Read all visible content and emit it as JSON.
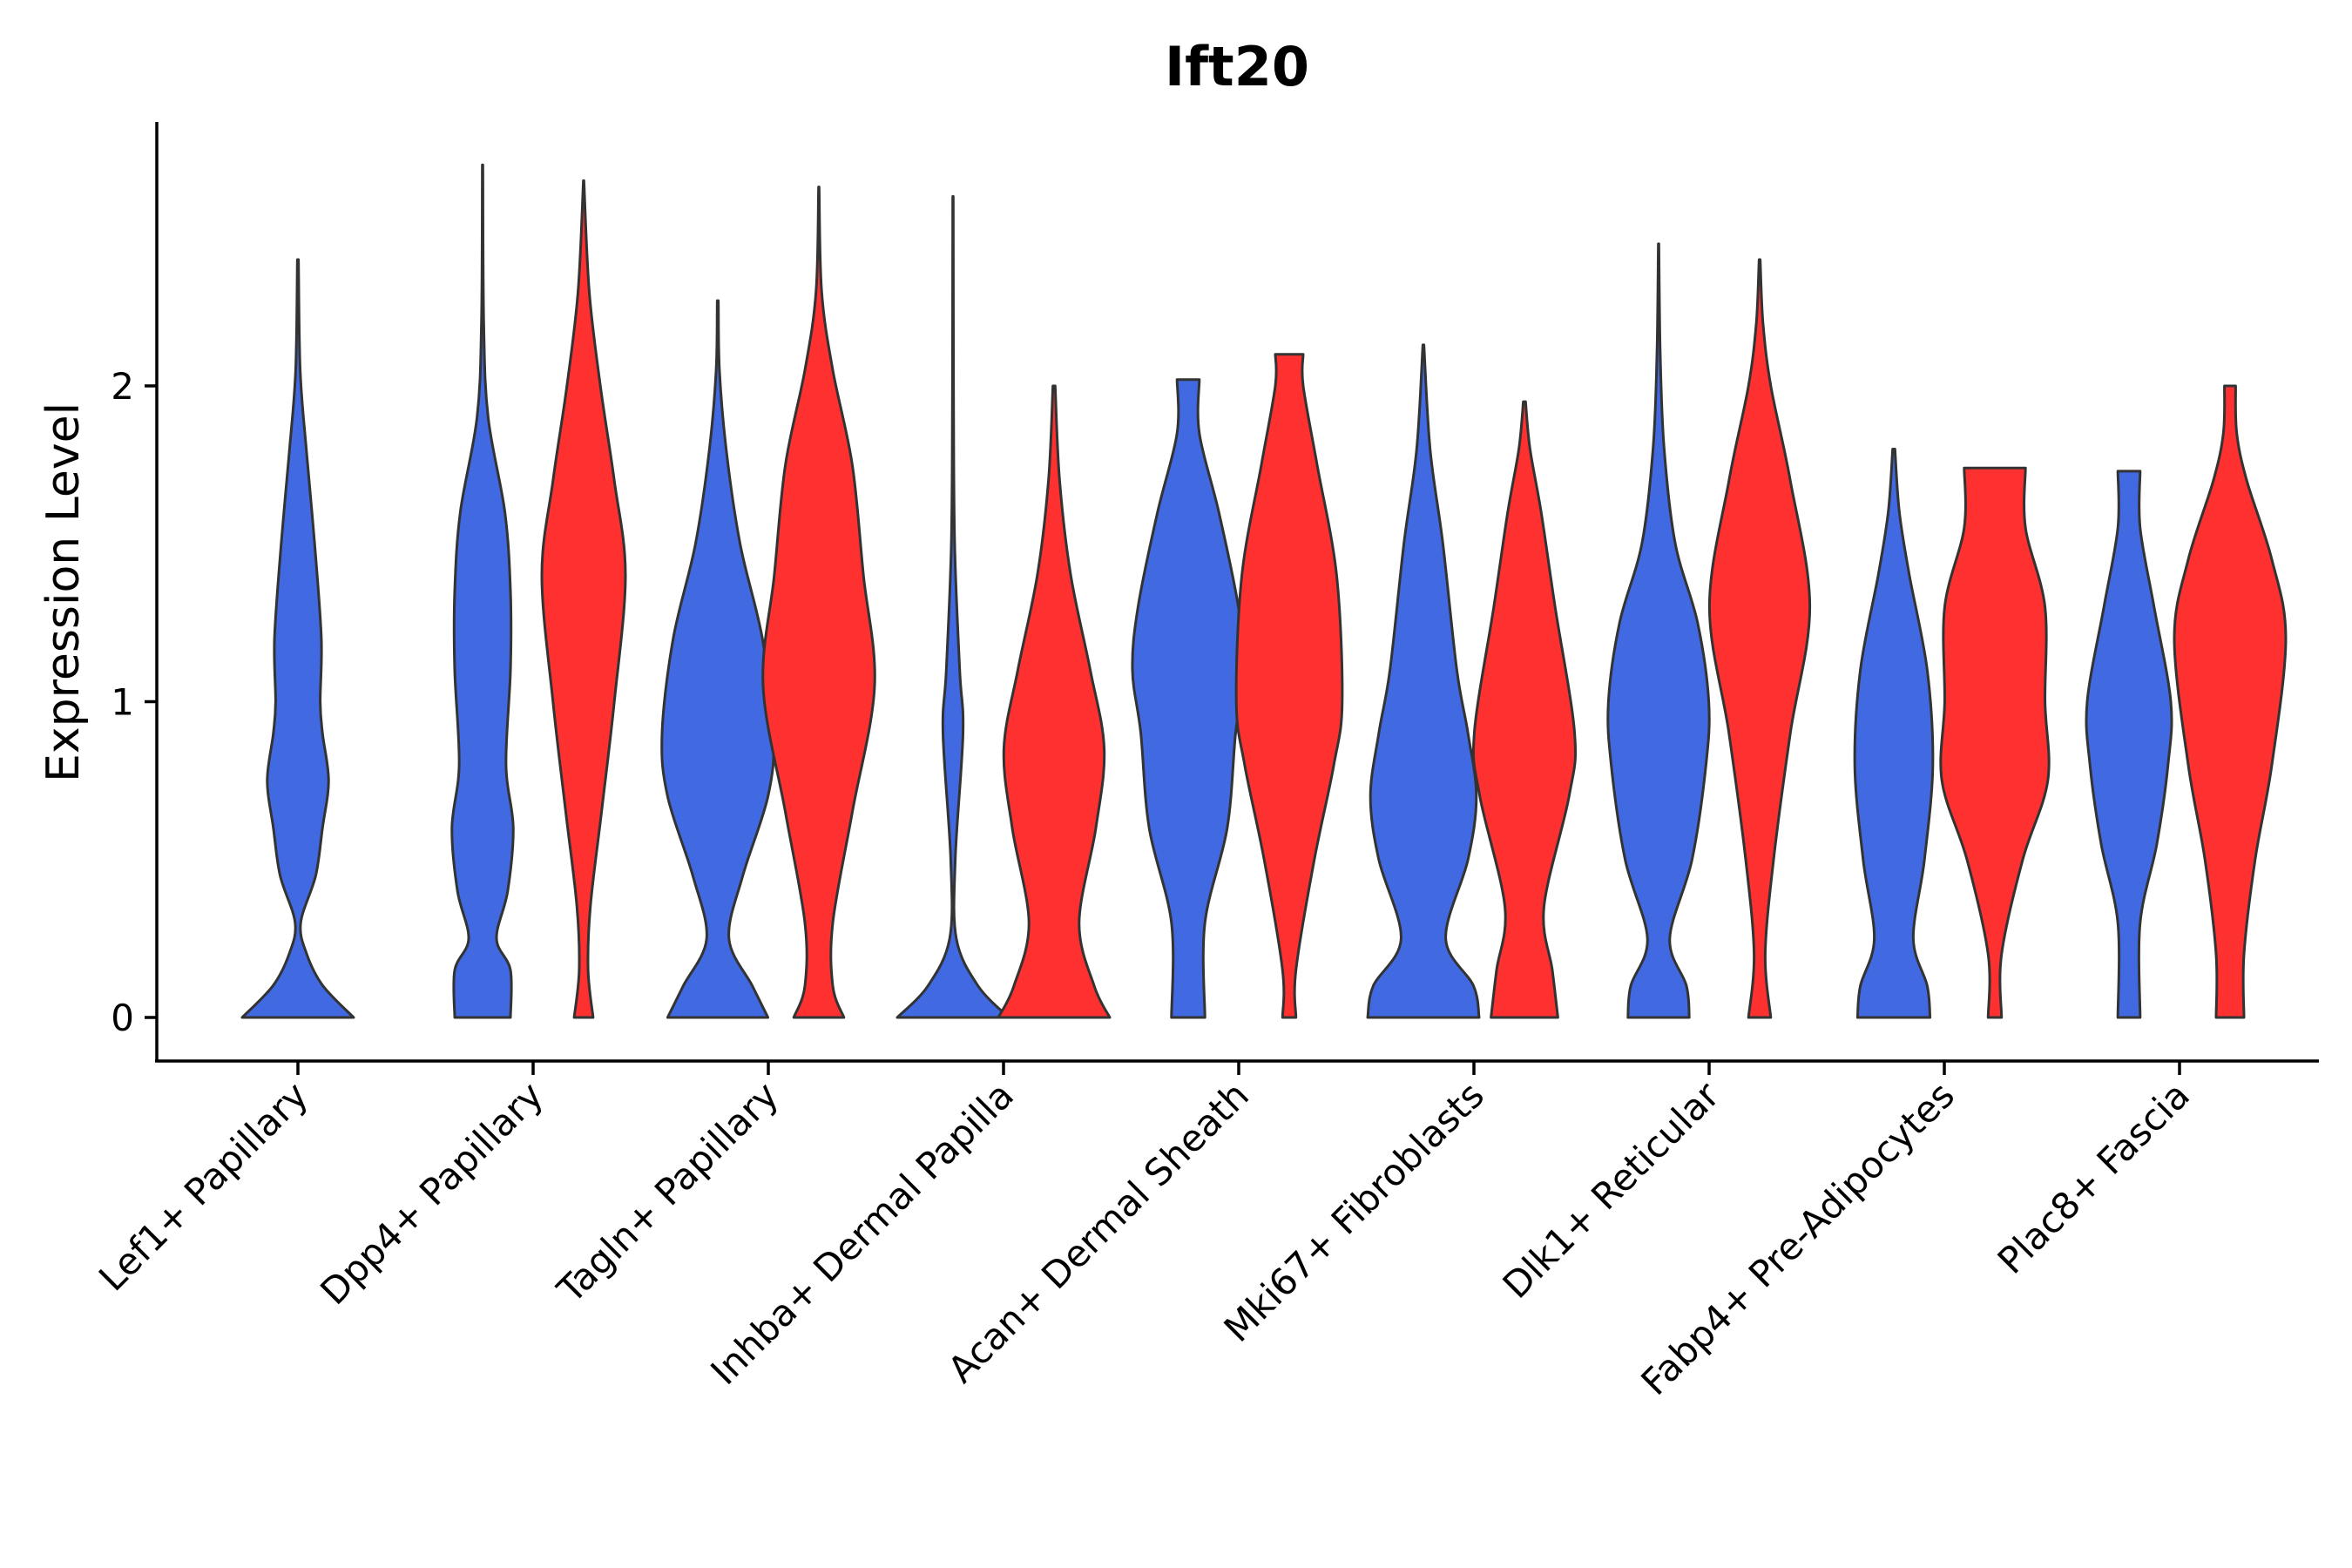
{
  "chart_data": {
    "type": "violin",
    "title": "Ift20",
    "xlabel": "",
    "ylabel": "Expression Level",
    "ylim": [
      -0.14,
      2.85
    ],
    "yticks": [
      0,
      1,
      2
    ],
    "grid": false,
    "legend": "none",
    "colors": {
      "group1": "#4169E1",
      "group2": "#FF3030",
      "outline": "#333333"
    },
    "categories": [
      "Lef1+ Papillary",
      "Dpp4+ Papillary",
      "Tagln+ Papillary",
      "Inhba+ Dermal Papilla",
      "Acan+ Dermal Sheath",
      "Mki67+ Fibroblasts",
      "Dlk1+ Reticular",
      "Fabp4+ Pre-Adipocytes",
      "Plac8+ Fascia"
    ],
    "series": [
      {
        "name": "group1",
        "color": "#4169E1",
        "violins": [
          {
            "category": "Lef1+ Papillary",
            "max": 2.4,
            "profile": [
              [
                0,
                1.0
              ],
              [
                0.1,
                0.45
              ],
              [
                0.2,
                0.16
              ],
              [
                0.3,
                0.05
              ],
              [
                0.45,
                0.32
              ],
              [
                0.6,
                0.44
              ],
              [
                0.75,
                0.55
              ],
              [
                0.9,
                0.44
              ],
              [
                1.0,
                0.4
              ],
              [
                1.2,
                0.42
              ],
              [
                1.5,
                0.3
              ],
              [
                1.8,
                0.15
              ],
              [
                2.05,
                0.04
              ],
              [
                2.4,
                0.01
              ]
            ]
          },
          {
            "category": "Dpp4+ Papillary",
            "max": 2.7,
            "profile": [
              [
                0,
                0.5
              ],
              [
                0.15,
                0.5
              ],
              [
                0.25,
                0.25
              ],
              [
                0.4,
                0.45
              ],
              [
                0.6,
                0.55
              ],
              [
                0.8,
                0.42
              ],
              [
                1.1,
                0.5
              ],
              [
                1.35,
                0.5
              ],
              [
                1.6,
                0.4
              ],
              [
                1.9,
                0.1
              ],
              [
                2.2,
                0.02
              ],
              [
                2.7,
                0.005
              ]
            ]
          },
          {
            "category": "Tagln+ Papillary",
            "max": 2.27,
            "profile": [
              [
                0,
                0.9
              ],
              [
                0.1,
                0.62
              ],
              [
                0.25,
                0.2
              ],
              [
                0.45,
                0.45
              ],
              [
                0.7,
                0.9
              ],
              [
                0.9,
                1.0
              ],
              [
                1.2,
                0.8
              ],
              [
                1.5,
                0.4
              ],
              [
                1.8,
                0.15
              ],
              [
                2.05,
                0.03
              ],
              [
                2.27,
                0.01
              ]
            ]
          },
          {
            "category": "Inhba+ Dermal Papilla",
            "max": 2.6,
            "profile": [
              [
                0,
                1.0
              ],
              [
                0.1,
                0.45
              ],
              [
                0.25,
                0.06
              ],
              [
                0.5,
                0.04
              ],
              [
                0.9,
                0.18
              ],
              [
                1.1,
                0.12
              ],
              [
                1.5,
                0.03
              ],
              [
                2.0,
                0.01
              ],
              [
                2.6,
                0.005
              ]
            ]
          },
          {
            "category": "Acan+ Dermal Sheath",
            "max": 2.02,
            "profile": [
              [
                0,
                0.3
              ],
              [
                0.3,
                0.3
              ],
              [
                0.6,
                0.7
              ],
              [
                0.9,
                0.85
              ],
              [
                1.1,
                1.0
              ],
              [
                1.3,
                0.9
              ],
              [
                1.6,
                0.55
              ],
              [
                1.85,
                0.2
              ],
              [
                2.02,
                0.2
              ]
            ]
          },
          {
            "category": "Mki67+ Fibroblasts",
            "max": 2.13,
            "profile": [
              [
                0,
                1.0
              ],
              [
                0.1,
                0.9
              ],
              [
                0.25,
                0.4
              ],
              [
                0.5,
                0.8
              ],
              [
                0.7,
                0.95
              ],
              [
                0.9,
                0.8
              ],
              [
                1.1,
                0.6
              ],
              [
                1.5,
                0.35
              ],
              [
                1.8,
                0.12
              ],
              [
                2.13,
                0.01
              ]
            ]
          },
          {
            "category": "Dlk1+ Reticular",
            "max": 2.45,
            "profile": [
              [
                0,
                0.55
              ],
              [
                0.1,
                0.5
              ],
              [
                0.25,
                0.2
              ],
              [
                0.5,
                0.6
              ],
              [
                0.8,
                0.85
              ],
              [
                1.0,
                0.9
              ],
              [
                1.25,
                0.7
              ],
              [
                1.5,
                0.3
              ],
              [
                1.8,
                0.1
              ],
              [
                2.1,
                0.03
              ],
              [
                2.45,
                0.005
              ]
            ]
          },
          {
            "category": "Fabp4+ Pre-Adipocytes",
            "max": 1.8,
            "profile": [
              [
                0,
                0.65
              ],
              [
                0.1,
                0.6
              ],
              [
                0.25,
                0.35
              ],
              [
                0.5,
                0.55
              ],
              [
                0.8,
                0.7
              ],
              [
                1.1,
                0.6
              ],
              [
                1.4,
                0.28
              ],
              [
                1.6,
                0.1
              ],
              [
                1.8,
                0.02
              ]
            ]
          },
          {
            "category": "Plac8+ Fascia",
            "max": 1.73,
            "profile": [
              [
                0,
                0.2
              ],
              [
                0.3,
                0.2
              ],
              [
                0.55,
                0.5
              ],
              [
                0.8,
                0.7
              ],
              [
                1.0,
                0.75
              ],
              [
                1.3,
                0.45
              ],
              [
                1.55,
                0.2
              ],
              [
                1.73,
                0.2
              ]
            ]
          }
        ]
      },
      {
        "name": "group2",
        "color": "#FF3030",
        "violins": [
          {
            "category": "Dpp4+ Papillary",
            "max": 2.65,
            "profile": [
              [
                0,
                0.17
              ],
              [
                0.15,
                0.08
              ],
              [
                0.35,
                0.12
              ],
              [
                0.65,
                0.32
              ],
              [
                1.0,
                0.55
              ],
              [
                1.4,
                0.75
              ],
              [
                1.7,
                0.55
              ],
              [
                2.0,
                0.3
              ],
              [
                2.3,
                0.1
              ],
              [
                2.65,
                0.005
              ]
            ]
          },
          {
            "category": "Tagln+ Papillary",
            "max": 2.63,
            "profile": [
              [
                0,
                0.45
              ],
              [
                0.1,
                0.25
              ],
              [
                0.3,
                0.25
              ],
              [
                0.65,
                0.6
              ],
              [
                1.05,
                1.0
              ],
              [
                1.4,
                0.8
              ],
              [
                1.75,
                0.6
              ],
              [
                2.05,
                0.25
              ],
              [
                2.3,
                0.05
              ],
              [
                2.63,
                0.005
              ]
            ]
          },
          {
            "category": "Inhba+ Dermal Papilla",
            "max": 2.0,
            "profile": [
              [
                0,
                1.0
              ],
              [
                0.1,
                0.72
              ],
              [
                0.3,
                0.45
              ],
              [
                0.6,
                0.75
              ],
              [
                0.85,
                0.9
              ],
              [
                1.1,
                0.65
              ],
              [
                1.4,
                0.3
              ],
              [
                1.7,
                0.1
              ],
              [
                2.0,
                0.02
              ]
            ]
          },
          {
            "category": "Acan+ Dermal Sheath",
            "max": 2.1,
            "profile": [
              [
                0,
                0.12
              ],
              [
                0.15,
                0.12
              ],
              [
                0.5,
                0.45
              ],
              [
                0.8,
                0.8
              ],
              [
                1.0,
                0.95
              ],
              [
                1.4,
                0.85
              ],
              [
                1.75,
                0.5
              ],
              [
                2.0,
                0.25
              ],
              [
                2.1,
                0.25
              ]
            ]
          },
          {
            "category": "Mki67+ Fibroblasts",
            "max": 1.95,
            "profile": [
              [
                0,
                0.6
              ],
              [
                0.15,
                0.5
              ],
              [
                0.35,
                0.35
              ],
              [
                0.7,
                0.8
              ],
              [
                0.9,
                0.9
              ],
              [
                1.3,
                0.55
              ],
              [
                1.6,
                0.3
              ],
              [
                1.8,
                0.1
              ],
              [
                1.95,
                0.02
              ]
            ]
          },
          {
            "category": "Dlk1+ Reticular",
            "max": 2.4,
            "profile": [
              [
                0,
                0.2
              ],
              [
                0.2,
                0.1
              ],
              [
                0.5,
                0.25
              ],
              [
                0.9,
                0.55
              ],
              [
                1.3,
                0.9
              ],
              [
                1.7,
                0.55
              ],
              [
                2.0,
                0.2
              ],
              [
                2.2,
                0.06
              ],
              [
                2.4,
                0.01
              ]
            ]
          },
          {
            "category": "Fabp4+ Pre-Adipocytes",
            "max": 1.74,
            "profile": [
              [
                0,
                0.12
              ],
              [
                0.2,
                0.12
              ],
              [
                0.5,
                0.5
              ],
              [
                0.75,
                0.95
              ],
              [
                1.0,
                0.9
              ],
              [
                1.3,
                0.9
              ],
              [
                1.55,
                0.55
              ],
              [
                1.74,
                0.55
              ]
            ]
          },
          {
            "category": "Plac8+ Fascia",
            "max": 2.0,
            "profile": [
              [
                0,
                0.25
              ],
              [
                0.2,
                0.25
              ],
              [
                0.5,
                0.45
              ],
              [
                0.8,
                0.75
              ],
              [
                1.2,
                1.0
              ],
              [
                1.45,
                0.75
              ],
              [
                1.7,
                0.3
              ],
              [
                1.85,
                0.12
              ],
              [
                2.0,
                0.1
              ]
            ]
          }
        ]
      }
    ]
  }
}
